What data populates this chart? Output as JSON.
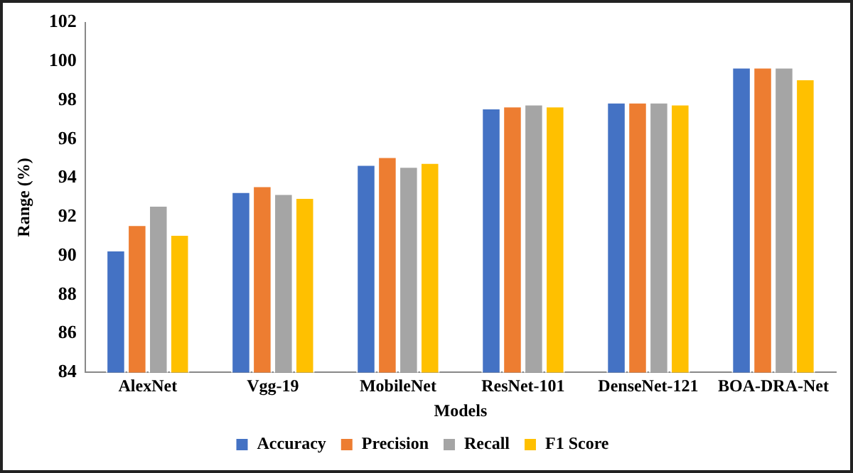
{
  "chart_data": {
    "type": "bar",
    "xlabel": "Models",
    "ylabel": "Range (%)",
    "categories": [
      "AlexNet",
      "Vgg-19",
      "MobileNet",
      "ResNet-101",
      "DenseNet-121",
      "BOA-DRA-Net"
    ],
    "series": [
      {
        "name": "Accuracy",
        "color": "#4472c4",
        "values": [
          90.3,
          93.3,
          94.7,
          97.6,
          97.9,
          99.7
        ]
      },
      {
        "name": "Precision",
        "color": "#ed7d31",
        "values": [
          91.6,
          93.6,
          95.1,
          97.7,
          97.9,
          99.7
        ]
      },
      {
        "name": "Recall",
        "color": "#a5a5a5",
        "values": [
          92.6,
          93.2,
          94.6,
          97.8,
          97.9,
          99.7
        ]
      },
      {
        "name": "F1 Score",
        "color": "#ffc000",
        "values": [
          91.1,
          93.0,
          94.8,
          97.7,
          97.8,
          99.1
        ]
      }
    ],
    "ylim": [
      84,
      102
    ],
    "yticks": [
      84,
      86,
      88,
      90,
      92,
      94,
      96,
      98,
      100,
      102
    ],
    "grid": false,
    "legend": "bottom"
  }
}
